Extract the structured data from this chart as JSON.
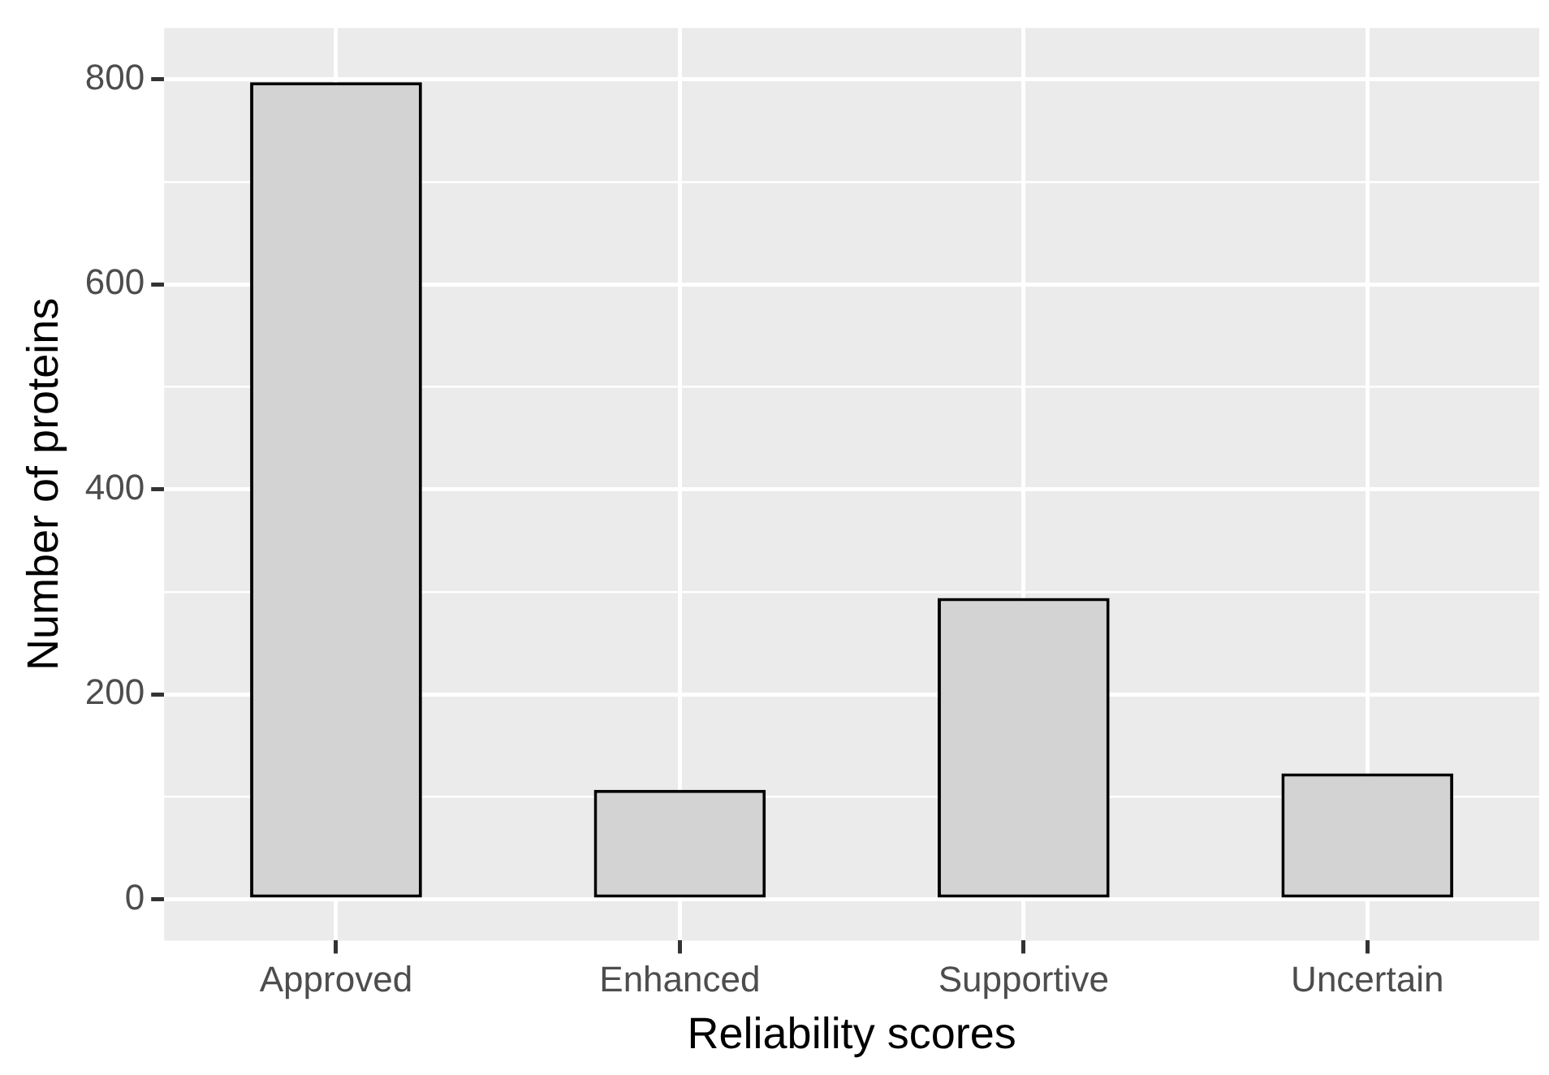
{
  "chart_data": {
    "type": "bar",
    "xlabel": "Reliability scores",
    "ylabel": "Number of proteins",
    "categories": [
      "Approved",
      "Enhanced",
      "Supportive",
      "Uncertain"
    ],
    "values": [
      797,
      107,
      294,
      123
    ],
    "color": "#d3d3d3",
    "ylim": [
      -40,
      850
    ],
    "yticks": [
      0,
      {
        "value": 100,
        "label": null
      },
      200,
      {
        "value": 300,
        "label": null
      },
      400,
      {
        "value": 500,
        "label": null
      },
      600,
      {
        "value": 700,
        "label": null
      },
      800
    ],
    "grid": true,
    "legend": false
  }
}
